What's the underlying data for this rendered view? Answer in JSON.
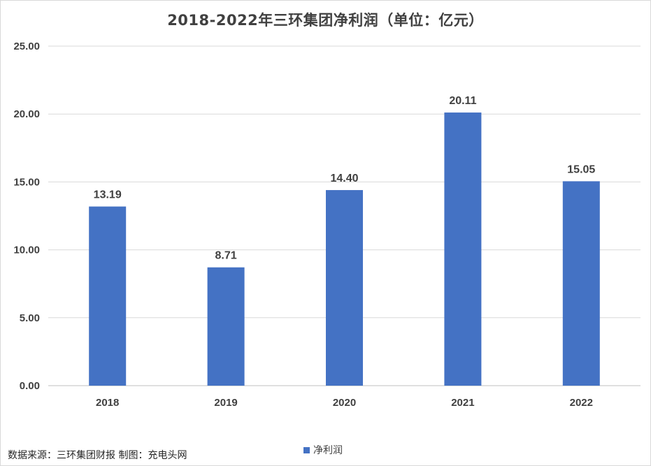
{
  "chart_data": {
    "type": "bar",
    "title": "2018-2022年三环集团净利润（单位：亿元）",
    "categories": [
      "2018",
      "2019",
      "2020",
      "2021",
      "2022"
    ],
    "series": [
      {
        "name": "净利润",
        "values": [
          13.19,
          8.71,
          14.4,
          20.11,
          15.05
        ],
        "color": "#4472c4"
      }
    ],
    "data_labels": [
      "13.19",
      "8.71",
      "14.40",
      "20.11",
      "15.05"
    ],
    "y_ticks": [
      "0.00",
      "5.00",
      "10.00",
      "15.00",
      "20.00",
      "25.00"
    ],
    "ylim": [
      0,
      25
    ],
    "grid": true,
    "legend": "bottom-center",
    "xlabel": "",
    "ylabel": ""
  },
  "footer": {
    "source_note": "数据来源：三环集团财报  制图：充电头网"
  }
}
